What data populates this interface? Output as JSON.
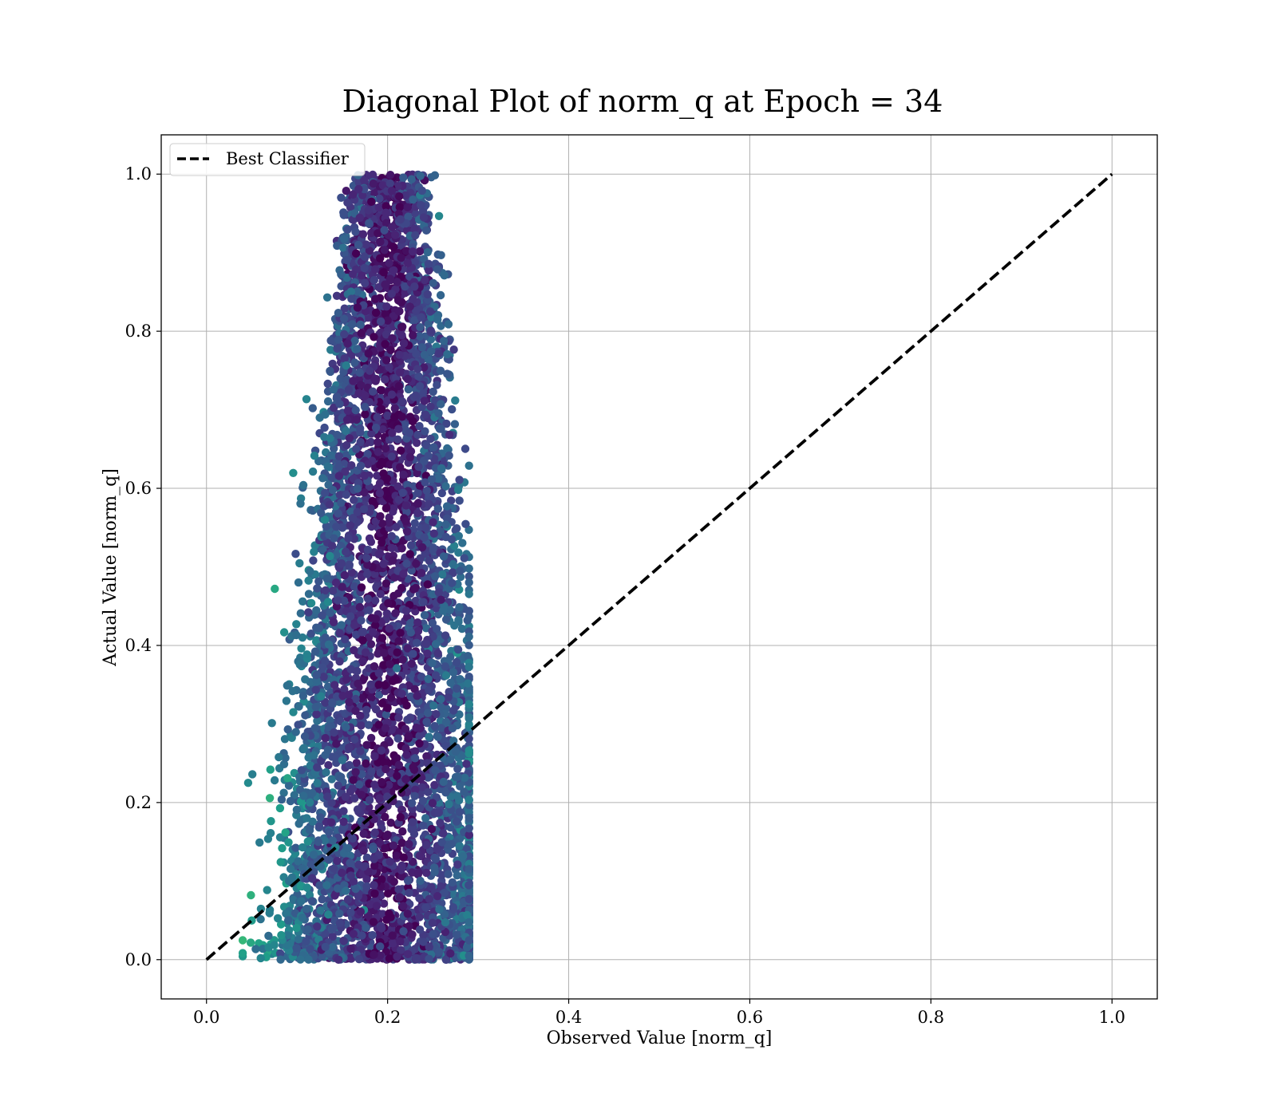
{
  "chart_data": {
    "type": "scatter",
    "title": "Diagonal Plot of norm_q at Epoch = 34",
    "xlabel": "Observed Value [norm_q]",
    "ylabel": "Actual Value [norm_q]",
    "xlim": [
      -0.05,
      1.05
    ],
    "ylim": [
      -0.05,
      1.05
    ],
    "xticks": [
      0.0,
      0.2,
      0.4,
      0.6,
      0.8,
      1.0
    ],
    "yticks": [
      0.0,
      0.2,
      0.4,
      0.6,
      0.8,
      1.0
    ],
    "xtick_labels": [
      "0.0",
      "0.2",
      "0.4",
      "0.6",
      "0.8",
      "1.0"
    ],
    "ytick_labels": [
      "0.0",
      "0.2",
      "0.4",
      "0.6",
      "0.8",
      "1.0"
    ],
    "grid": true,
    "colormap": "viridis",
    "legend": {
      "placement": "upper-left",
      "entries": [
        "Best Classifier"
      ]
    },
    "reference_line": {
      "name": "Best Classifier",
      "x": [
        0.0,
        1.0
      ],
      "y": [
        0.0,
        1.0
      ],
      "style": "dashed",
      "color": "#000000"
    },
    "point_cloud": {
      "center_x": 0.2,
      "x_range": [
        0.04,
        0.29
      ],
      "y_range": [
        0.0,
        1.0
      ],
      "notes_free": true
    }
  }
}
